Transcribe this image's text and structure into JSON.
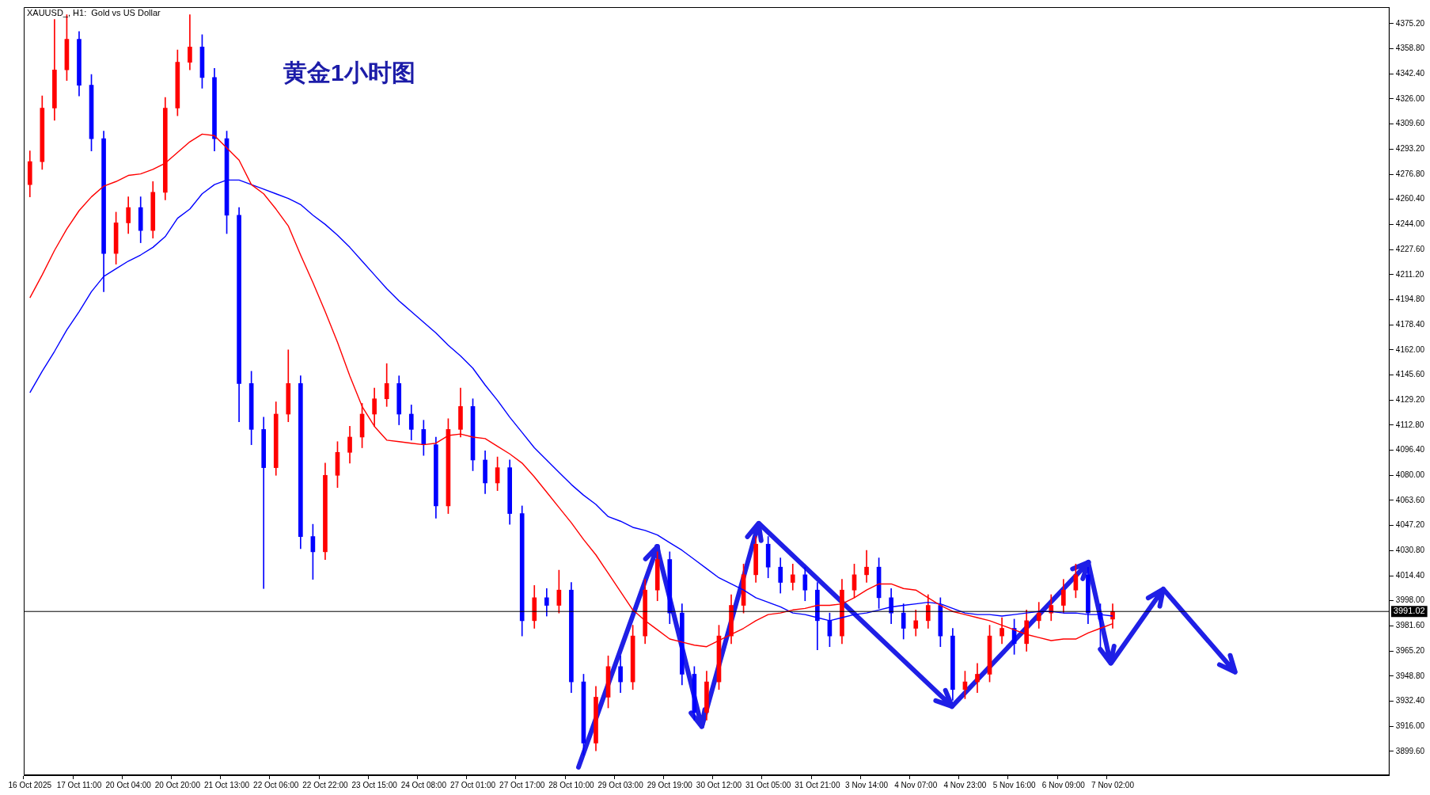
{
  "chart_data": {
    "type": "candlestick",
    "title": "黄金1小时图",
    "subtitle": "XAUUSD_, H1:  Gold vs US Dollar",
    "categories": [
      "16 Oct 2025",
      null,
      null,
      null,
      "17 Oct 11:00",
      null,
      null,
      null,
      "20 Oct 04:00",
      null,
      null,
      null,
      "20 Oct 20:00",
      null,
      null,
      null,
      "21 Oct 13:00",
      null,
      null,
      null,
      "22 Oct 06:00",
      null,
      null,
      null,
      "22 Oct 22:00",
      null,
      null,
      null,
      "23 Oct 15:00",
      null,
      null,
      null,
      "24 Oct 08:00",
      null,
      null,
      null,
      "27 Oct 01:00",
      null,
      null,
      null,
      "27 Oct 17:00",
      null,
      null,
      null,
      "28 Oct 10:00",
      null,
      null,
      null,
      "29 Oct 03:00",
      null,
      null,
      null,
      "29 Oct 19:00",
      null,
      null,
      null,
      "30 Oct 12:00",
      null,
      null,
      null,
      "31 Oct 05:00",
      null,
      null,
      null,
      "31 Oct 21:00",
      null,
      null,
      null,
      "3 Nov 14:00",
      null,
      null,
      null,
      "4 Nov 07:00",
      null,
      null,
      null,
      "4 Nov 23:00",
      null,
      null,
      null,
      "5 Nov 16:00",
      null,
      null,
      null,
      "6 Nov 09:00",
      null,
      null,
      null,
      "7 Nov 02:00",
      null,
      null,
      null,
      null,
      null,
      null,
      null,
      null,
      null,
      null,
      null,
      null,
      null,
      null,
      null,
      null,
      null,
      null,
      null,
      null,
      null,
      null
    ],
    "ohlc": [
      [
        4270,
        4292,
        4262,
        4285
      ],
      [
        4285,
        4328,
        4280,
        4320
      ],
      [
        4320,
        4378,
        4312,
        4345
      ],
      [
        4345,
        4381,
        4338,
        4365
      ],
      [
        4365,
        4370,
        4328,
        4335
      ],
      [
        4335,
        4342,
        4292,
        4300
      ],
      [
        4300,
        4305,
        4200,
        4225
      ],
      [
        4225,
        4252,
        4218,
        4245
      ],
      [
        4245,
        4262,
        4238,
        4255
      ],
      [
        4255,
        4262,
        4232,
        4240
      ],
      [
        4240,
        4272,
        4235,
        4265
      ],
      [
        4265,
        4327,
        4260,
        4320
      ],
      [
        4320,
        4358,
        4315,
        4350
      ],
      [
        4350,
        4381,
        4345,
        4360
      ],
      [
        4360,
        4368,
        4333,
        4340
      ],
      [
        4340,
        4346,
        4292,
        4300
      ],
      [
        4300,
        4305,
        4238,
        4250
      ],
      [
        4250,
        4255,
        4115,
        4140
      ],
      [
        4140,
        4148,
        4100,
        4110
      ],
      [
        4110,
        4118,
        4006,
        4085
      ],
      [
        4085,
        4128,
        4080,
        4120
      ],
      [
        4120,
        4162,
        4115,
        4140
      ],
      [
        4140,
        4145,
        4032,
        4040
      ],
      [
        4040,
        4048,
        4012,
        4030
      ],
      [
        4030,
        4088,
        4025,
        4080
      ],
      [
        4080,
        4102,
        4072,
        4095
      ],
      [
        4095,
        4112,
        4088,
        4105
      ],
      [
        4105,
        4127,
        4098,
        4120
      ],
      [
        4120,
        4137,
        4112,
        4130
      ],
      [
        4130,
        4153,
        4125,
        4140
      ],
      [
        4140,
        4145,
        4113,
        4120
      ],
      [
        4120,
        4126,
        4103,
        4110
      ],
      [
        4110,
        4116,
        4093,
        4100
      ],
      [
        4100,
        4105,
        4052,
        4060
      ],
      [
        4060,
        4117,
        4055,
        4110
      ],
      [
        4110,
        4137,
        4105,
        4125
      ],
      [
        4125,
        4130,
        4083,
        4090
      ],
      [
        4090,
        4096,
        4068,
        4075
      ],
      [
        4075,
        4092,
        4070,
        4085
      ],
      [
        4085,
        4090,
        4048,
        4055
      ],
      [
        4055,
        4060,
        3975,
        3985
      ],
      [
        3985,
        4008,
        3980,
        4000
      ],
      [
        4000,
        4006,
        3988,
        3995
      ],
      [
        3995,
        4018,
        3990,
        4005
      ],
      [
        4005,
        4010,
        3938,
        3945
      ],
      [
        3945,
        3950,
        3897,
        3905
      ],
      [
        3905,
        3942,
        3900,
        3935
      ],
      [
        3935,
        3962,
        3928,
        3955
      ],
      [
        3955,
        3962,
        3938,
        3945
      ],
      [
        3945,
        3982,
        3940,
        3975
      ],
      [
        3975,
        4012,
        3970,
        4005
      ],
      [
        4005,
        4030,
        3998,
        4025
      ],
      [
        4025,
        4030,
        3983,
        3990
      ],
      [
        3990,
        3996,
        3943,
        3950
      ],
      [
        3950,
        3955,
        3920,
        3925
      ],
      [
        3925,
        3952,
        3920,
        3945
      ],
      [
        3945,
        3982,
        3940,
        3975
      ],
      [
        3975,
        4002,
        3970,
        3995
      ],
      [
        3995,
        4022,
        3990,
        4015
      ],
      [
        4015,
        4040,
        4010,
        4035
      ],
      [
        4035,
        4040,
        4013,
        4020
      ],
      [
        4020,
        4026,
        4003,
        4010
      ],
      [
        4010,
        4022,
        4005,
        4015
      ],
      [
        4015,
        4020,
        3998,
        4005
      ],
      [
        4005,
        4010,
        3966,
        3985
      ],
      [
        3985,
        3990,
        3968,
        3975
      ],
      [
        3975,
        4012,
        3970,
        4005
      ],
      [
        4005,
        4022,
        4000,
        4015
      ],
      [
        4015,
        4031,
        4010,
        4020
      ],
      [
        4020,
        4026,
        3993,
        4000
      ],
      [
        4000,
        4006,
        3983,
        3990
      ],
      [
        3990,
        3996,
        3973,
        3980
      ],
      [
        3980,
        3992,
        3975,
        3985
      ],
      [
        3985,
        4002,
        3980,
        3995
      ],
      [
        3995,
        4000,
        3968,
        3975
      ],
      [
        3975,
        3980,
        3933,
        3940
      ],
      [
        3940,
        3952,
        3934,
        3945
      ],
      [
        3945,
        3957,
        3938,
        3950
      ],
      [
        3950,
        3982,
        3945,
        3975
      ],
      [
        3975,
        3987,
        3970,
        3980
      ],
      [
        3980,
        3986,
        3963,
        3970
      ],
      [
        3970,
        3992,
        3965,
        3985
      ],
      [
        3985,
        3997,
        3980,
        3990
      ],
      [
        3990,
        4002,
        3985,
        3995
      ],
      [
        3995,
        4012,
        3990,
        4005
      ],
      [
        4005,
        4022,
        4000,
        4015
      ],
      [
        4015,
        4020,
        3983,
        3990
      ],
      [
        3990,
        3996,
        3968,
        3986
      ],
      [
        3986,
        3996,
        3980,
        3991.02
      ],
      null,
      null,
      null,
      null,
      null,
      null,
      null,
      null,
      null,
      null,
      null,
      null,
      null,
      null,
      null,
      null,
      null,
      null,
      null,
      null,
      null,
      null
    ],
    "colors": [
      "#ff0000",
      "#ff0000",
      "#ff0000",
      "#ff0000",
      "#0000ff",
      "#0000ff",
      "#0000ff",
      "#ff0000",
      "#ff0000",
      "#0000ff",
      "#ff0000",
      "#ff0000",
      "#ff0000",
      "#ff0000",
      "#0000ff",
      "#0000ff",
      "#0000ff",
      "#0000ff",
      "#0000ff",
      "#0000ff",
      "#ff0000",
      "#ff0000",
      "#0000ff",
      "#0000ff",
      "#ff0000",
      "#ff0000",
      "#ff0000",
      "#ff0000",
      "#ff0000",
      "#ff0000",
      "#0000ff",
      "#0000ff",
      "#0000ff",
      "#0000ff",
      "#ff0000",
      "#ff0000",
      "#0000ff",
      "#0000ff",
      "#ff0000",
      "#0000ff",
      "#0000ff",
      "#ff0000",
      "#0000ff",
      "#ff0000",
      "#0000ff",
      "#0000ff",
      "#ff0000",
      "#ff0000",
      "#0000ff",
      "#ff0000",
      "#ff0000",
      "#ff0000",
      "#0000ff",
      "#0000ff",
      "#0000ff",
      "#ff0000",
      "#ff0000",
      "#ff0000",
      "#ff0000",
      "#ff0000",
      "#0000ff",
      "#0000ff",
      "#ff0000",
      "#0000ff",
      "#0000ff",
      "#0000ff",
      "#ff0000",
      "#ff0000",
      "#ff0000",
      "#0000ff",
      "#0000ff",
      "#0000ff",
      "#ff0000",
      "#ff0000",
      "#0000ff",
      "#0000ff",
      "#ff0000",
      "#ff0000",
      "#ff0000",
      "#ff0000",
      "#0000ff",
      "#ff0000",
      "#ff0000",
      "#ff0000",
      "#ff0000",
      "#ff0000",
      "#0000ff",
      "#0000ff",
      "#ff0000",
      null,
      null,
      null,
      null,
      null,
      null,
      null,
      null,
      null,
      null,
      null,
      null,
      null,
      null,
      null,
      null,
      null,
      null,
      null,
      null,
      null,
      null
    ],
    "series": [
      {
        "type": "line",
        "color": "#ff0000",
        "values": [
          4196,
          4211,
          4227,
          4241,
          4253,
          4262,
          4269,
          4272,
          4276,
          4277,
          4280,
          4284,
          4291,
          4298,
          4303,
          4302,
          4294,
          4286,
          4270,
          4264,
          4254,
          4243,
          4224,
          4206,
          4187,
          4167,
          4145,
          4125,
          4112,
          4103,
          4102,
          4101,
          4100,
          4101,
          4106,
          4107,
          4105,
          4104,
          4099,
          4094,
          4088,
          4079,
          4069,
          4059,
          4049,
          4038,
          4028,
          4016,
          4004,
          3992,
          3985,
          3979,
          3973,
          3971,
          3969,
          3968,
          3972,
          3976,
          3980,
          3985,
          3989,
          3990,
          3992,
          3993,
          3995,
          3995,
          3996,
          4000,
          4005,
          4009,
          4009,
          4006,
          4005,
          4000,
          3995,
          3991,
          3989,
          3987,
          3985,
          3982,
          3979,
          3976,
          3974,
          3972,
          3973,
          3973,
          3977,
          3980,
          3983,
          null,
          null,
          null,
          null,
          null,
          null,
          null,
          null,
          null,
          null,
          null,
          null,
          null,
          null,
          null,
          null,
          null,
          null,
          null,
          null,
          null,
          null
        ]
      },
      {
        "type": "line",
        "color": "#0000ff",
        "values": [
          4134,
          4148,
          4161,
          4175,
          4187,
          4200,
          4210,
          4215,
          4220,
          4224,
          4229,
          4236,
          4248,
          4254,
          4264,
          4270,
          4273,
          4273,
          4270,
          4267,
          4264,
          4261,
          4257,
          4250,
          4244,
          4237,
          4229,
          4220,
          4211,
          4202,
          4194,
          4187,
          4180,
          4173,
          4165,
          4158,
          4150,
          4139,
          4129,
          4118,
          4108,
          4098,
          4090,
          4082,
          4074,
          4067,
          4061,
          4053,
          4050,
          4046,
          4044,
          4041,
          4036,
          4031,
          4025,
          4019,
          4013,
          4009,
          4005,
          4000,
          3997,
          3994,
          3990,
          3989,
          3987,
          3985,
          3987,
          3989,
          3990,
          3992,
          3994,
          3995,
          3996,
          3997,
          3996,
          3993,
          3990,
          3989,
          3989,
          3988,
          3989,
          3990,
          3991,
          3991,
          3990,
          3990,
          3989,
          3989,
          3988,
          null,
          null,
          null,
          null,
          null,
          null,
          null,
          null,
          null,
          null,
          null,
          null,
          null,
          null,
          null,
          null,
          null,
          null,
          null,
          null,
          null,
          null
        ]
      }
    ],
    "ylim": [
      3884,
      4386
    ],
    "yticks": [
      {
        "value": 3899.6,
        "label": "3899.60"
      },
      {
        "value": 3916,
        "label": "3916.00"
      },
      {
        "value": 3932.4,
        "label": "3932.40"
      },
      {
        "value": 3948.8,
        "label": "3948.80"
      },
      {
        "value": 3965.2,
        "label": "3965.20"
      },
      {
        "value": 3981.6,
        "label": "3981.60"
      },
      {
        "value": 3998,
        "label": "3998.00"
      },
      {
        "value": 4014.4,
        "label": "4014.40"
      },
      {
        "value": 4030.8,
        "label": "4030.80"
      },
      {
        "value": 4047.2,
        "label": "4047.20"
      },
      {
        "value": 4063.6,
        "label": "4063.60"
      },
      {
        "value": 4080,
        "label": "4080.00"
      },
      {
        "value": 4096.4,
        "label": "4096.40"
      },
      {
        "value": 4112.8,
        "label": "4112.80"
      },
      {
        "value": 4129.2,
        "label": "4129.20"
      },
      {
        "value": 4145.6,
        "label": "4145.60"
      },
      {
        "value": 4162,
        "label": "4162.00"
      },
      {
        "value": 4178.4,
        "label": "4178.40"
      },
      {
        "value": 4194.8,
        "label": "4194.80"
      },
      {
        "value": 4211.2,
        "label": "4211.20"
      },
      {
        "value": 4227.6,
        "label": "4227.60"
      },
      {
        "value": 4244,
        "label": "4244.00"
      },
      {
        "value": 4260.4,
        "label": "4260.40"
      },
      {
        "value": 4276.8,
        "label": "4276.80"
      },
      {
        "value": 4293.2,
        "label": "4293.20"
      },
      {
        "value": 4309.6,
        "label": "4309.60"
      },
      {
        "value": 4326,
        "label": "4326.00"
      },
      {
        "value": 4342.4,
        "label": "4342.40"
      },
      {
        "value": 4358.8,
        "label": "4358.80"
      },
      {
        "value": 4375.2,
        "label": "4375.20"
      }
    ],
    "ref_lines": [
      {
        "axis": "y",
        "value": 3991.02,
        "label": "3991.02",
        "color": "#000000"
      }
    ],
    "grid": false,
    "legend": false
  }
}
